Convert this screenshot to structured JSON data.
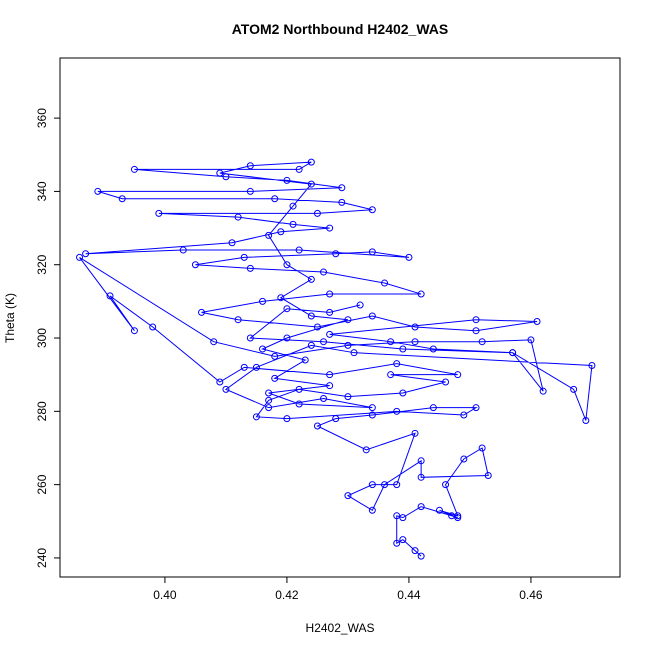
{
  "chart_data": {
    "type": "line",
    "title": "ATOM2 Northbound H2402_WAS",
    "x_label": "H2402_WAS",
    "y_label": "Theta (K)",
    "x": [
      0.442,
      0.441,
      0.439,
      0.438,
      0.438,
      0.439,
      0.442,
      0.447,
      0.448,
      0.445,
      0.448,
      0.446,
      0.449,
      0.452,
      0.453,
      0.442,
      0.442,
      0.436,
      0.434,
      0.43,
      0.434,
      0.438,
      0.441,
      0.433,
      0.425,
      0.428,
      0.434,
      0.444,
      0.451,
      0.449,
      0.438,
      0.42,
      0.415,
      0.417,
      0.422,
      0.43,
      0.439,
      0.446,
      0.437,
      0.448,
      0.438,
      0.427,
      0.413,
      0.409,
      0.398,
      0.391,
      0.395,
      0.386,
      0.408,
      0.418,
      0.43,
      0.441,
      0.452,
      0.46,
      0.462,
      0.457,
      0.444,
      0.437,
      0.427,
      0.451,
      0.461,
      0.451,
      0.441,
      0.434,
      0.425,
      0.412,
      0.406,
      0.416,
      0.427,
      0.442,
      0.436,
      0.426,
      0.414,
      0.405,
      0.413,
      0.428,
      0.434,
      0.44,
      0.422,
      0.403,
      0.387,
      0.411,
      0.419,
      0.427,
      0.421,
      0.412,
      0.399,
      0.425,
      0.434,
      0.429,
      0.418,
      0.393,
      0.389,
      0.414,
      0.429,
      0.42,
      0.41,
      0.395,
      0.422,
      0.424,
      0.414,
      0.409,
      0.424,
      0.421,
      0.417,
      0.42,
      0.424,
      0.419,
      0.424,
      0.43,
      0.42,
      0.416,
      0.423,
      0.418,
      0.427,
      0.417,
      0.422,
      0.434,
      0.426,
      0.417,
      0.41,
      0.415,
      0.424,
      0.431,
      0.47,
      0.469,
      0.467,
      0.457,
      0.439,
      0.426,
      0.414,
      0.42,
      0.427,
      0.432
    ],
    "series": [
      {
        "name": "H2402_WAS",
        "color": "#0000ff",
        "values": [
          240.5,
          242,
          245,
          244,
          251.5,
          251,
          254,
          251.5,
          251,
          253,
          251.5,
          260,
          267,
          270,
          262.5,
          262,
          266.5,
          260,
          253,
          257,
          260,
          260,
          274,
          269.5,
          276,
          278,
          279,
          281,
          281,
          279,
          280,
          278,
          278.5,
          283,
          286,
          284,
          285,
          288,
          290,
          290,
          293,
          290,
          292,
          288,
          303,
          311.5,
          302,
          322,
          299,
          295,
          298,
          299,
          299,
          299.5,
          285.5,
          296,
          297,
          299,
          301,
          305,
          304.5,
          302,
          303,
          306,
          303,
          305,
          307,
          310,
          312,
          312,
          315,
          318,
          319,
          320,
          322,
          323,
          323.5,
          322,
          324,
          324,
          323,
          326,
          329,
          330,
          331,
          333,
          334,
          334,
          335,
          337,
          338,
          338,
          340,
          340,
          341,
          343,
          344,
          346,
          346,
          348,
          347,
          345,
          342,
          336,
          328,
          320,
          316,
          311,
          306,
          305,
          300,
          297,
          294,
          289,
          287,
          285,
          282,
          281,
          283.5,
          281,
          286,
          292,
          298,
          296,
          292.5,
          277.5,
          286,
          296,
          297,
          299,
          300,
          308,
          307,
          309
        ]
      }
    ],
    "xlim": [
      0.3828,
      0.4746
    ],
    "ylim": [
      234.8,
      376.4
    ],
    "xticks": [
      {
        "value": 0.4,
        "label": "0.40"
      },
      {
        "value": 0.42,
        "label": "0.42"
      },
      {
        "value": 0.44,
        "label": "0.44"
      },
      {
        "value": 0.46,
        "label": "0.46"
      }
    ],
    "yticks": [
      240,
      260,
      280,
      300,
      320,
      340,
      360
    ]
  }
}
